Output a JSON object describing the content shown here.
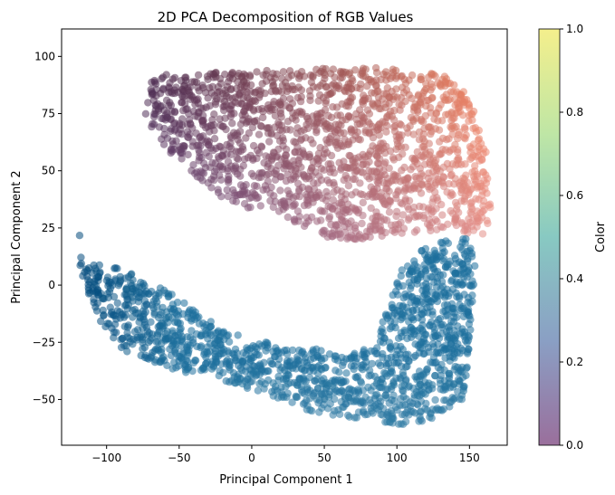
{
  "chart_data": {
    "type": "scatter",
    "title": "2D PCA Decomposition of RGB Values",
    "xlabel": "Principal Component 1",
    "ylabel": "Principal Component 2",
    "xlim": [
      -131,
      176
    ],
    "ylim": [
      -70,
      112
    ],
    "xticks": [
      -100,
      -50,
      0,
      50,
      100,
      150
    ],
    "yticks": [
      -50,
      -25,
      0,
      25,
      50,
      75,
      100
    ],
    "tick_labels_x": [
      "−100",
      "−50",
      "0",
      "50",
      "100",
      "150"
    ],
    "tick_labels_y": [
      "−50",
      "−25",
      "0",
      "25",
      "50",
      "75",
      "100"
    ],
    "grid": false,
    "colorbar": {
      "label": "Color",
      "range": [
        0.0,
        1.0
      ],
      "ticks": [
        0.0,
        0.2,
        0.4,
        0.6,
        0.8,
        1.0
      ],
      "tick_labels": [
        "0.0",
        "0.2",
        "0.4",
        "0.6",
        "0.8",
        "1.0"
      ],
      "colors": [
        "#9a6f9c",
        "#8aa7c9",
        "#8fd3be",
        "#c5e8a4",
        "#f4ef8c"
      ]
    },
    "regions": [
      {
        "name": "upper-cluster",
        "polygon": [
          [
            -70,
            92
          ],
          [
            -30,
            93
          ],
          [
            20,
            94
          ],
          [
            60,
            95
          ],
          [
            100,
            95
          ],
          [
            135,
            92
          ],
          [
            150,
            82
          ],
          [
            162,
            58
          ],
          [
            165,
            30
          ],
          [
            162,
            22
          ],
          [
            150,
            22
          ],
          [
            140,
            25
          ],
          [
            100,
            22
          ],
          [
            80,
            20
          ],
          [
            55,
            20
          ],
          [
            30,
            27
          ],
          [
            -10,
            35
          ],
          [
            -40,
            45
          ],
          [
            -60,
            60
          ],
          [
            -75,
            75
          ]
        ],
        "colors": {
          "tl": "#4a2a4e",
          "tr": "#f7865f",
          "bl": "#6a4a7e",
          "br": "#e7918a",
          "center": "#a85f6a"
        }
      },
      {
        "name": "lower-band",
        "polygon": [
          [
            -119,
            24
          ],
          [
            -115,
            10
          ],
          [
            -95,
            8
          ],
          [
            -70,
            2
          ],
          [
            -40,
            -10
          ],
          [
            -20,
            -20
          ],
          [
            10,
            -25
          ],
          [
            40,
            -27
          ],
          [
            60,
            -30
          ],
          [
            80,
            -28
          ],
          [
            88,
            -20
          ],
          [
            95,
            -8
          ],
          [
            105,
            10
          ],
          [
            122,
            18
          ],
          [
            148,
            22
          ],
          [
            155,
            10
          ],
          [
            150,
            -30
          ],
          [
            145,
            -50
          ],
          [
            120,
            -60
          ],
          [
            95,
            -62
          ],
          [
            65,
            -58
          ],
          [
            40,
            -55
          ],
          [
            10,
            -48
          ],
          [
            -20,
            -42
          ],
          [
            -60,
            -36
          ],
          [
            -90,
            -28
          ],
          [
            -105,
            -15
          ],
          [
            -118,
            5
          ]
        ],
        "colors": {
          "a": "#034a7c",
          "b": "#1d6f9c",
          "c": "#98bcd6",
          "d": "#d8c9c1",
          "e": "#c9b4a8"
        }
      }
    ]
  }
}
